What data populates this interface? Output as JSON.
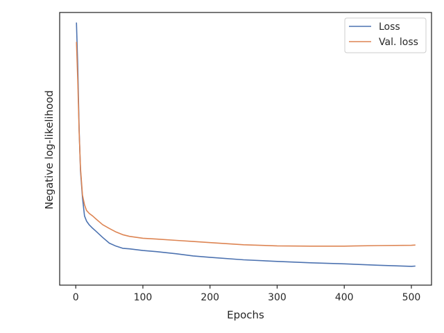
{
  "chart_data": {
    "type": "line",
    "xlabel": "Epochs",
    "ylabel": "Negative log-likelihood",
    "xlim": [
      -24,
      530
    ],
    "ylim": [
      0,
      100
    ],
    "x_ticks": [
      0,
      100,
      200,
      300,
      400,
      500
    ],
    "y_ticks_shown": false,
    "grid": false,
    "legend": "top-right",
    "series": [
      {
        "name": "Loss",
        "color": "#4c72b0",
        "x": [
          1,
          3,
          5,
          7,
          10,
          13,
          16,
          20,
          25,
          30,
          40,
          50,
          60,
          70,
          80,
          100,
          120,
          150,
          175,
          200,
          250,
          300,
          350,
          400,
          450,
          500,
          506
        ],
        "y": [
          96.3,
          80,
          57,
          42,
          32,
          25.4,
          23.5,
          22.1,
          20.9,
          19.8,
          17.5,
          15.4,
          14.3,
          13.5,
          13.3,
          12.7,
          12.3,
          11.5,
          10.7,
          10.2,
          9.3,
          8.7,
          8.2,
          7.8,
          7.3,
          6.9,
          7.0
        ]
      },
      {
        "name": "Val. loss",
        "color": "#dd8452",
        "x": [
          1,
          3,
          5,
          7,
          10,
          13,
          16,
          20,
          25,
          30,
          40,
          50,
          60,
          70,
          80,
          100,
          120,
          150,
          175,
          200,
          250,
          300,
          350,
          400,
          450,
          500,
          506
        ],
        "y": [
          89.2,
          75,
          56,
          43,
          33,
          29.5,
          27.4,
          26.3,
          25.4,
          24.3,
          22.2,
          20.8,
          19.5,
          18.5,
          17.9,
          17.2,
          16.9,
          16.4,
          16,
          15.6,
          14.8,
          14.4,
          14.3,
          14.3,
          14.5,
          14.6,
          14.7
        ]
      }
    ]
  }
}
